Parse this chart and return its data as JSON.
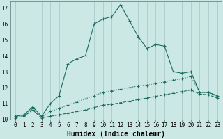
{
  "xlabel": "Humidex (Indice chaleur)",
  "background_color": "#cce8e4",
  "grid_color": "#aacccc",
  "line_color": "#1a6b5e",
  "xlim": [
    -0.5,
    23.5
  ],
  "ylim": [
    10,
    17.4
  ],
  "x_ticks": [
    0,
    1,
    2,
    3,
    4,
    5,
    6,
    7,
    8,
    9,
    10,
    11,
    12,
    13,
    14,
    15,
    16,
    17,
    18,
    19,
    20,
    21,
    22,
    23
  ],
  "y_ticks": [
    10,
    11,
    12,
    13,
    14,
    15,
    16,
    17
  ],
  "curve1_x": [
    0,
    1,
    2,
    3,
    4,
    5,
    6,
    7,
    8,
    9,
    10,
    11,
    12,
    13,
    14,
    15,
    16,
    17,
    18,
    19,
    20,
    21,
    22,
    23
  ],
  "curve1_y": [
    10.2,
    10.3,
    10.8,
    10.2,
    11.0,
    11.5,
    13.5,
    13.8,
    14.0,
    16.0,
    16.3,
    16.45,
    17.2,
    16.2,
    15.2,
    14.45,
    14.7,
    14.6,
    13.0,
    12.9,
    13.0,
    11.7,
    11.7,
    11.5
  ],
  "curve2_x": [
    0,
    1,
    2,
    3,
    4,
    5,
    6,
    7,
    8,
    9,
    10,
    11,
    12,
    13,
    14,
    15,
    16,
    17,
    18,
    19,
    20,
    21,
    22,
    23
  ],
  "curve2_y": [
    10.15,
    10.25,
    10.7,
    10.15,
    10.5,
    10.7,
    10.9,
    11.1,
    11.3,
    11.5,
    11.7,
    11.8,
    11.9,
    12.0,
    12.1,
    12.15,
    12.25,
    12.35,
    12.5,
    12.55,
    12.7,
    11.7,
    11.7,
    11.45
  ],
  "curve3_x": [
    0,
    1,
    2,
    3,
    4,
    5,
    6,
    7,
    8,
    9,
    10,
    11,
    12,
    13,
    14,
    15,
    16,
    17,
    18,
    19,
    20,
    21,
    22,
    23
  ],
  "curve3_y": [
    10.1,
    10.2,
    10.6,
    10.1,
    10.2,
    10.3,
    10.4,
    10.5,
    10.6,
    10.75,
    10.9,
    10.95,
    11.05,
    11.15,
    11.25,
    11.35,
    11.45,
    11.55,
    11.65,
    11.75,
    11.85,
    11.6,
    11.55,
    11.35
  ],
  "tick_fontsize": 5.5,
  "xlabel_fontsize": 7.0,
  "linewidth": 0.8,
  "marker_size": 2.5
}
